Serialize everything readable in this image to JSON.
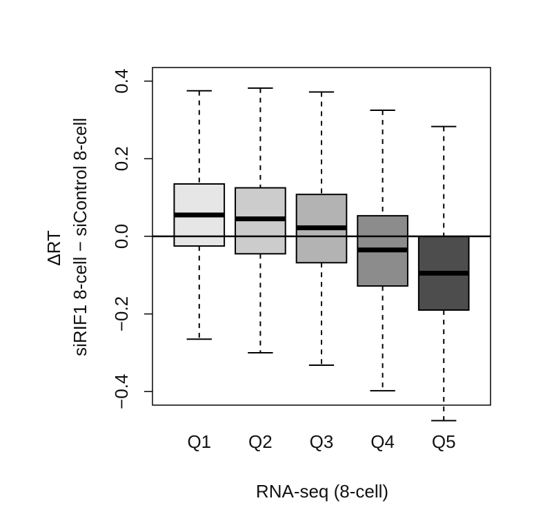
{
  "chart_data": {
    "type": "boxplot",
    "xlabel": "RNA-seq (8-cell)",
    "ylabel_lines": [
      "ΔRT",
      "siRIF1 8-cell − siControl 8-cell"
    ],
    "ylim": [
      -0.435,
      0.435
    ],
    "yticks": [
      {
        "value": -0.4,
        "label": "−0.4"
      },
      {
        "value": -0.2,
        "label": "−0.2"
      },
      {
        "value": 0.0,
        "label": "0.0"
      },
      {
        "value": 0.2,
        "label": "0.2"
      },
      {
        "value": 0.4,
        "label": "0.4"
      }
    ],
    "reference_line": 0.0,
    "grid": false,
    "categories": [
      "Q1",
      "Q2",
      "Q3",
      "Q4",
      "Q5"
    ],
    "boxes": [
      {
        "category": "Q1",
        "whisker_low": -0.265,
        "q1": -0.025,
        "median": 0.055,
        "q3": 0.135,
        "whisker_high": 0.375,
        "color": "#e6e6e6"
      },
      {
        "category": "Q2",
        "whisker_low": -0.3,
        "q1": -0.045,
        "median": 0.045,
        "q3": 0.125,
        "whisker_high": 0.382,
        "color": "#cccccc"
      },
      {
        "category": "Q3",
        "whisker_low": -0.332,
        "q1": -0.068,
        "median": 0.022,
        "q3": 0.108,
        "whisker_high": 0.372,
        "color": "#b3b3b3"
      },
      {
        "category": "Q4",
        "whisker_low": -0.398,
        "q1": -0.128,
        "median": -0.035,
        "q3": 0.053,
        "whisker_high": 0.325,
        "color": "#8c8c8c"
      },
      {
        "category": "Q5",
        "whisker_low": -0.475,
        "q1": -0.19,
        "median": -0.095,
        "q3": 0.0,
        "whisker_high": 0.283,
        "color": "#4d4d4d"
      }
    ]
  }
}
